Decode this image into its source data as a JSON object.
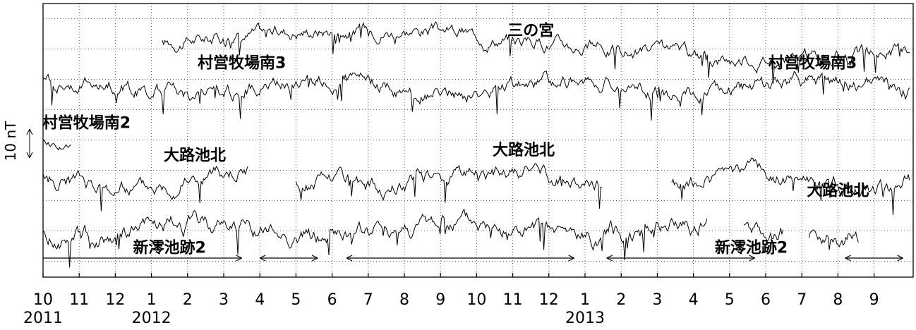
{
  "chart_data": {
    "type": "line",
    "title": "",
    "ylabel": "10 nT",
    "xlim_month_index": [
      0,
      24
    ],
    "months": [
      "10",
      "11",
      "12",
      "1",
      "2",
      "3",
      "4",
      "5",
      "6",
      "7",
      "8",
      "9",
      "10",
      "11",
      "12",
      "1",
      "2",
      "3",
      "4",
      "5",
      "6",
      "7",
      "8",
      "9"
    ],
    "years": [
      {
        "label": "2011",
        "month_index": 0
      },
      {
        "label": "2012",
        "month_index": 3
      },
      {
        "label": "2013",
        "month_index": 15
      }
    ],
    "series": [
      {
        "name": "三の宮",
        "segments": [
          [
            3.3,
            24
          ]
        ],
        "baseline": 8.7,
        "amplitude": 0.32
      },
      {
        "name": "村営牧場南3",
        "segments": [
          [
            0,
            24
          ]
        ],
        "baseline": 7.0,
        "amplitude": 0.36
      },
      {
        "name": "村営牧場南2",
        "segments": [
          [
            0,
            0.8
          ]
        ],
        "baseline": 4.7,
        "amplitude": 0.2
      },
      {
        "name": "大路池北",
        "segments": [
          [
            0,
            5.7
          ],
          [
            7.0,
            15.5
          ],
          [
            17.4,
            24
          ]
        ],
        "baseline": 3.6,
        "amplitude": 0.38
      },
      {
        "name": "新澪池跡2",
        "segments": [
          [
            0,
            18.4
          ],
          [
            19.4,
            20.5
          ],
          [
            21.2,
            22.6
          ]
        ],
        "baseline": 1.7,
        "amplitude": 0.42
      }
    ],
    "labels": [
      {
        "text": "三の宮",
        "month_index": 13.5,
        "y": 8.9
      },
      {
        "text": "村営牧場南3",
        "month_index": 5.5,
        "y": 7.7
      },
      {
        "text": "村営牧場南3",
        "month_index": 21.3,
        "y": 7.7
      },
      {
        "text": "村営牧場南2",
        "month_index": 1.2,
        "y": 5.5
      },
      {
        "text": "大路池北",
        "month_index": 4.2,
        "y": 4.3
      },
      {
        "text": "大路池北",
        "month_index": 13.3,
        "y": 4.5
      },
      {
        "text": "大路池北",
        "month_index": 22.0,
        "y": 3.0
      },
      {
        "text": "新澪池跡2",
        "month_index": 3.5,
        "y": 0.9
      },
      {
        "text": "新澪池跡2",
        "month_index": 19.6,
        "y": 0.9
      }
    ],
    "spans": [
      {
        "start": 0,
        "end": 5.5
      },
      {
        "start": 6.0,
        "end": 7.6
      },
      {
        "start": 8.4,
        "end": 14.7
      },
      {
        "start": 15.6,
        "end": 19.7
      },
      {
        "start": 22.2,
        "end": 23.8
      }
    ],
    "grid": true
  }
}
